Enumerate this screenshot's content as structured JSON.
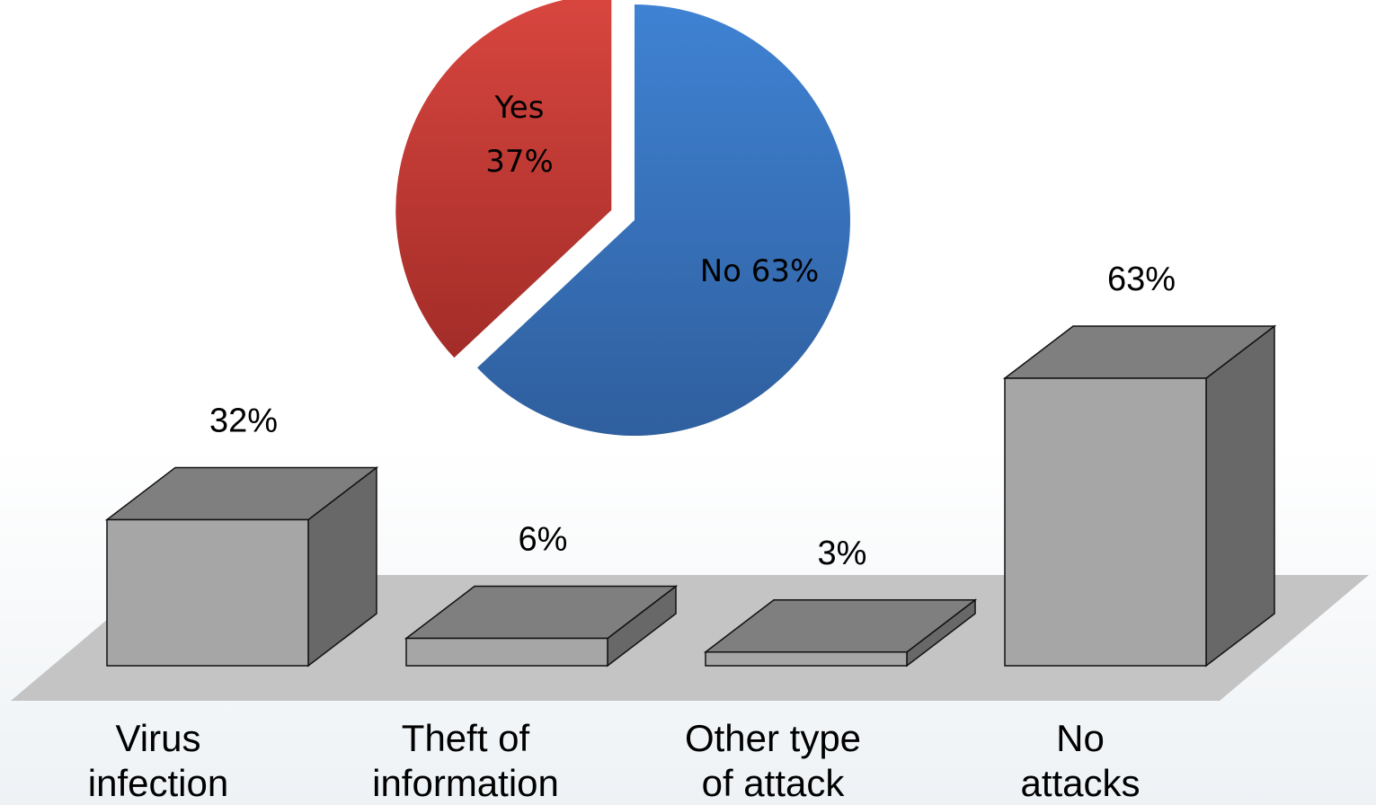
{
  "chart_data": [
    {
      "type": "pie",
      "slices": [
        {
          "label": "Yes",
          "value": 37,
          "value_text": "37%",
          "color": "#c0392b",
          "exploded": true
        },
        {
          "label": "No",
          "value": 63,
          "value_text": "63%",
          "color": "#3a76c4",
          "exploded": false
        }
      ],
      "data_labels": [
        "Yes\n37%",
        "No 63%"
      ]
    },
    {
      "type": "bar",
      "style": "3d-box",
      "categories": [
        [
          "Virus",
          "infection"
        ],
        [
          "Theft of",
          "information"
        ],
        [
          "Other type",
          "of attack"
        ],
        [
          "No",
          "attacks"
        ]
      ],
      "values": [
        32,
        6,
        3,
        63
      ],
      "value_labels": [
        "32%",
        "6%",
        "3%",
        "63%"
      ],
      "ylim": [
        0,
        63
      ],
      "grid": false,
      "bar_colors": {
        "front": "#a6a6a6",
        "top": "#7f7f7f",
        "side": "#686868"
      },
      "floor_color": "#c4c4c4"
    }
  ]
}
